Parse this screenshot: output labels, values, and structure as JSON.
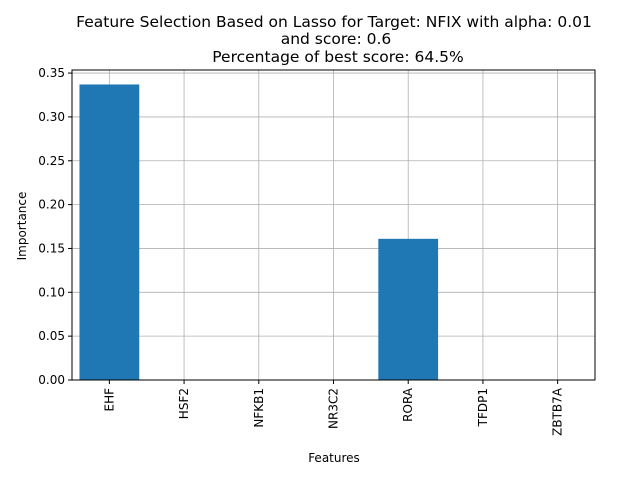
{
  "chart_data": {
    "type": "bar",
    "title_lines": [
      "Feature Selection Based on Lasso for Target: NFIX with alpha: 0.01",
      "and score: 0.6",
      "Percentage of best score: 64.5%"
    ],
    "xlabel": "Features",
    "ylabel": "Importance",
    "categories": [
      "EHF",
      "HSF2",
      "NFKB1",
      "NR3C2",
      "RORA",
      "TFDP1",
      "ZBTB7A"
    ],
    "values": [
      0.337,
      0.0,
      0.0,
      0.0,
      0.161,
      0.0,
      0.0
    ],
    "ylim": [
      0,
      0.35
    ],
    "yticks": [
      0.0,
      0.05,
      0.1,
      0.15,
      0.2,
      0.25,
      0.3,
      0.35
    ],
    "ytick_labels": [
      "0.00",
      "0.05",
      "0.10",
      "0.15",
      "0.20",
      "0.25",
      "0.30",
      "0.35"
    ],
    "grid": true,
    "bar_color": "#1f77b4"
  }
}
